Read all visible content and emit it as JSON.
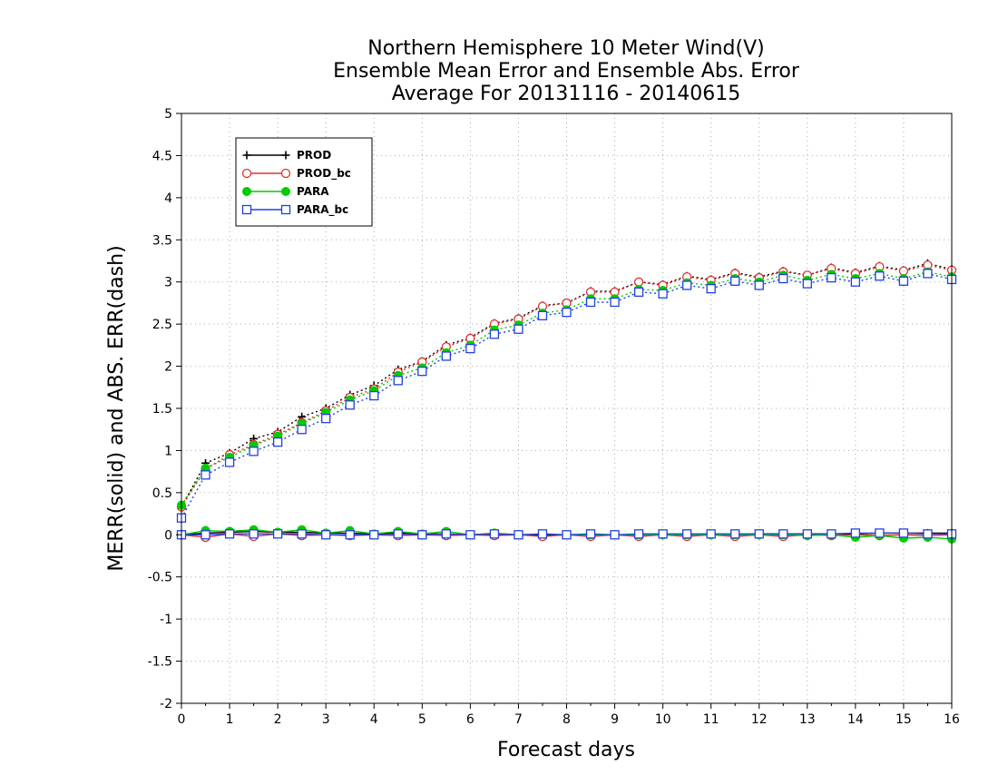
{
  "chart_data": {
    "type": "line",
    "title_lines": [
      "Northern Hemisphere 10 Meter Wind(V)",
      "Ensemble Mean Error and Ensemble Abs. Error",
      "Average For 20131116 - 20140615"
    ],
    "xlabel": "Forecast days",
    "ylabel": "MERR(solid) and ABS. ERR(dash)",
    "xlim": [
      0,
      16
    ],
    "ylim": [
      -2,
      5
    ],
    "xticks": [
      "0",
      "1",
      "2",
      "3",
      "4",
      "5",
      "6",
      "7",
      "8",
      "9",
      "10",
      "11",
      "12",
      "13",
      "14",
      "15",
      "16"
    ],
    "yticks": [
      "5",
      "4.5",
      "4",
      "3.5",
      "3",
      "2.5",
      "2",
      "1.5",
      "1",
      "0.5",
      "0",
      "-0.5",
      "-1",
      "-1.5",
      "-2"
    ],
    "grid": true,
    "legend_position": "top-left",
    "x": [
      0,
      0.5,
      1,
      1.5,
      2,
      2.5,
      3,
      3.5,
      4,
      4.5,
      5,
      5.5,
      6,
      6.5,
      7,
      7.5,
      8,
      8.5,
      9,
      9.5,
      10,
      10.5,
      11,
      11.5,
      12,
      12.5,
      13,
      13.5,
      14,
      14.5,
      15,
      15.5,
      16
    ],
    "series": [
      {
        "name": "PROD",
        "color": "#000000",
        "marker": "plus",
        "merr": [
          0.0,
          0.02,
          0.03,
          0.04,
          0.03,
          0.03,
          0.02,
          0.02,
          0.01,
          0.02,
          0.01,
          0.01,
          0.0,
          0.0,
          0.0,
          0.0,
          0.0,
          0.0,
          0.0,
          0.0,
          0.0,
          0.0,
          0.0,
          0.0,
          0.01,
          0.01,
          0.01,
          0.01,
          0.01,
          0.02,
          0.02,
          0.02,
          0.02
        ],
        "abs_err": [
          0.33,
          0.85,
          0.97,
          1.14,
          1.22,
          1.4,
          1.5,
          1.66,
          1.77,
          1.96,
          2.06,
          2.25,
          2.34,
          2.51,
          2.57,
          2.72,
          2.75,
          2.89,
          2.89,
          3.0,
          2.97,
          3.07,
          3.03,
          3.11,
          3.06,
          3.13,
          3.08,
          3.17,
          3.11,
          3.19,
          3.14,
          3.22,
          3.15
        ]
      },
      {
        "name": "PROD_bc",
        "color": "#e03030",
        "marker": "circle-open",
        "merr": [
          0.0,
          -0.03,
          0.01,
          -0.02,
          0.01,
          -0.01,
          0.0,
          -0.01,
          0.0,
          -0.01,
          0.0,
          -0.01,
          0.0,
          -0.01,
          0.0,
          -0.02,
          0.0,
          -0.02,
          0.0,
          -0.02,
          0.0,
          -0.02,
          0.0,
          -0.02,
          0.0,
          -0.02,
          0.0,
          -0.01,
          0.0,
          -0.01,
          0.0,
          -0.01,
          0.0
        ],
        "abs_err": [
          0.33,
          0.78,
          0.95,
          1.07,
          1.19,
          1.33,
          1.47,
          1.63,
          1.73,
          1.93,
          2.05,
          2.23,
          2.33,
          2.5,
          2.56,
          2.71,
          2.75,
          2.88,
          2.88,
          3.0,
          2.96,
          3.06,
          3.02,
          3.1,
          3.05,
          3.12,
          3.08,
          3.16,
          3.1,
          3.18,
          3.13,
          3.2,
          3.14
        ]
      },
      {
        "name": "PARA",
        "color": "#00cc00",
        "marker": "circle-filled",
        "merr": [
          0.0,
          0.05,
          0.04,
          0.06,
          0.03,
          0.06,
          0.02,
          0.05,
          0.01,
          0.04,
          0.01,
          0.04,
          0.0,
          0.02,
          0.0,
          0.01,
          0.0,
          0.0,
          0.0,
          0.0,
          0.0,
          0.0,
          0.0,
          0.0,
          0.0,
          0.0,
          -0.01,
          0.0,
          -0.03,
          -0.01,
          -0.04,
          -0.03,
          -0.05
        ],
        "abs_err": [
          0.35,
          0.79,
          0.92,
          1.06,
          1.17,
          1.32,
          1.45,
          1.6,
          1.71,
          1.89,
          1.98,
          2.16,
          2.25,
          2.43,
          2.49,
          2.63,
          2.67,
          2.8,
          2.8,
          2.91,
          2.9,
          2.99,
          2.96,
          3.04,
          3.0,
          3.08,
          3.02,
          3.09,
          3.04,
          3.1,
          3.04,
          3.12,
          3.06
        ]
      },
      {
        "name": "PARA_bc",
        "color": "#2040e0",
        "marker": "square-open",
        "merr": [
          0.0,
          0.0,
          0.01,
          0.01,
          0.01,
          0.01,
          0.0,
          0.0,
          0.0,
          0.01,
          0.0,
          0.01,
          0.0,
          0.01,
          0.0,
          0.01,
          0.0,
          0.01,
          0.0,
          0.01,
          0.01,
          0.01,
          0.01,
          0.01,
          0.01,
          0.01,
          0.01,
          0.01,
          0.02,
          0.02,
          0.02,
          0.01,
          0.01
        ],
        "abs_err": [
          0.2,
          0.71,
          0.86,
          0.99,
          1.1,
          1.25,
          1.38,
          1.54,
          1.65,
          1.83,
          1.94,
          2.12,
          2.21,
          2.38,
          2.44,
          2.6,
          2.64,
          2.76,
          2.76,
          2.88,
          2.86,
          2.96,
          2.92,
          3.01,
          2.96,
          3.04,
          2.98,
          3.05,
          3.0,
          3.07,
          3.01,
          3.1,
          3.03
        ]
      }
    ]
  }
}
